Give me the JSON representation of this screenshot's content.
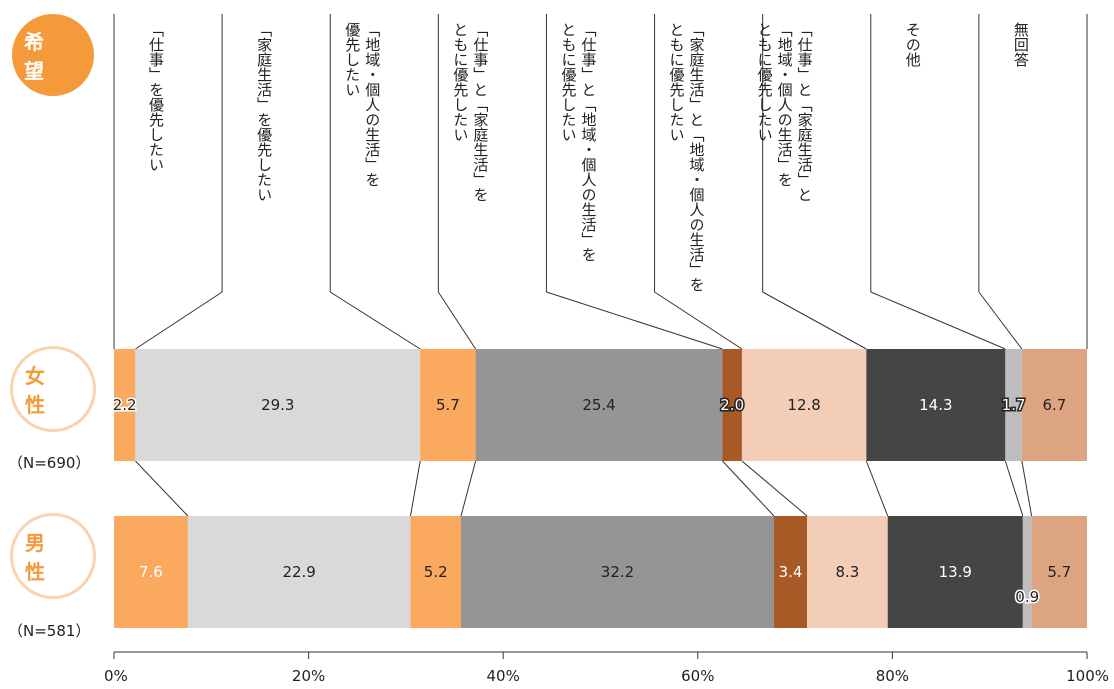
{
  "badges": {
    "hope": "希　望",
    "female": "女　性",
    "male": "男　性",
    "female_n": "（N=690）",
    "male_n": "（N=581）"
  },
  "chart_data": {
    "type": "bar",
    "orientation": "horizontal-stacked-100",
    "categories": [
      "「仕事」を優先したい",
      "「家庭生活」を優先したい",
      "「地域・個人の生活」を優先したい",
      "「仕事」と「家庭生活」をともに優先したい",
      "「仕事」と「地域・個人の生活」をともに優先したい",
      "「家庭生活」と「地域・個人の生活」をともに優先したい",
      "「仕事」と「家庭生活」と「地域・個人の生活」をともに優先したい",
      "その他",
      "無回答"
    ],
    "category_lines": [
      [
        "「仕事」を優先したい"
      ],
      [
        "「家庭生活」を優先したい"
      ],
      [
        "「地域・個人の生活」を",
        "優先したい"
      ],
      [
        "「仕事」と「家庭生活」を",
        "ともに優先したい"
      ],
      [
        "「仕事」と「地域・個人の生活」を",
        "ともに優先したい"
      ],
      [
        "「家庭生活」と「地域・個人の生活」を",
        "ともに優先したい"
      ],
      [
        "「仕事」と「家庭生活」と",
        "「地域・個人の生活」を",
        "ともに優先したい"
      ],
      [
        "その他"
      ],
      [
        "無回答"
      ]
    ],
    "series": [
      {
        "name": "女性",
        "values": [
          2.2,
          29.3,
          5.7,
          25.4,
          2.0,
          12.8,
          14.3,
          1.7,
          6.7
        ]
      },
      {
        "name": "男性",
        "values": [
          7.6,
          22.9,
          5.2,
          32.2,
          3.4,
          8.3,
          13.9,
          0.9,
          5.7
        ]
      }
    ],
    "value_labels": [
      [
        "2.2",
        "29.3",
        "5.7",
        "25.4",
        "2.0",
        "12.8",
        "14.3",
        "1.7",
        "6.7"
      ],
      [
        "7.6",
        "22.9",
        "5.2",
        "32.2",
        "3.4",
        "8.3",
        "13.9",
        "0.9",
        "5.7"
      ]
    ],
    "colors": [
      "#FBA95F",
      "#D9D9D9",
      "#FBA95F",
      "#959595",
      "#A85A26",
      "#F3CDB6",
      "#454545",
      "#BDBDBD",
      "#DDA481"
    ],
    "label_colors": [
      "#222222",
      "#222222",
      "#222222",
      "#222222",
      "#ffffff",
      "#222222",
      "#ffffff",
      "#222222",
      "#222222"
    ],
    "series_label_colors": [
      [
        "#222222",
        "#222222",
        "#222222",
        "#222222",
        "#ffffff",
        "#222222",
        "#ffffff",
        "#ffffff",
        "#222222"
      ],
      [
        "#ffffff",
        "#222222",
        "#222222",
        "#222222",
        "#ffffff",
        "#222222",
        "#ffffff",
        "#222222",
        "#222222"
      ]
    ],
    "xlim": [
      0,
      100
    ],
    "xticks": [
      "0%",
      "20%",
      "40%",
      "60%",
      "80%",
      "100%"
    ],
    "accent": "#F59A3B"
  }
}
